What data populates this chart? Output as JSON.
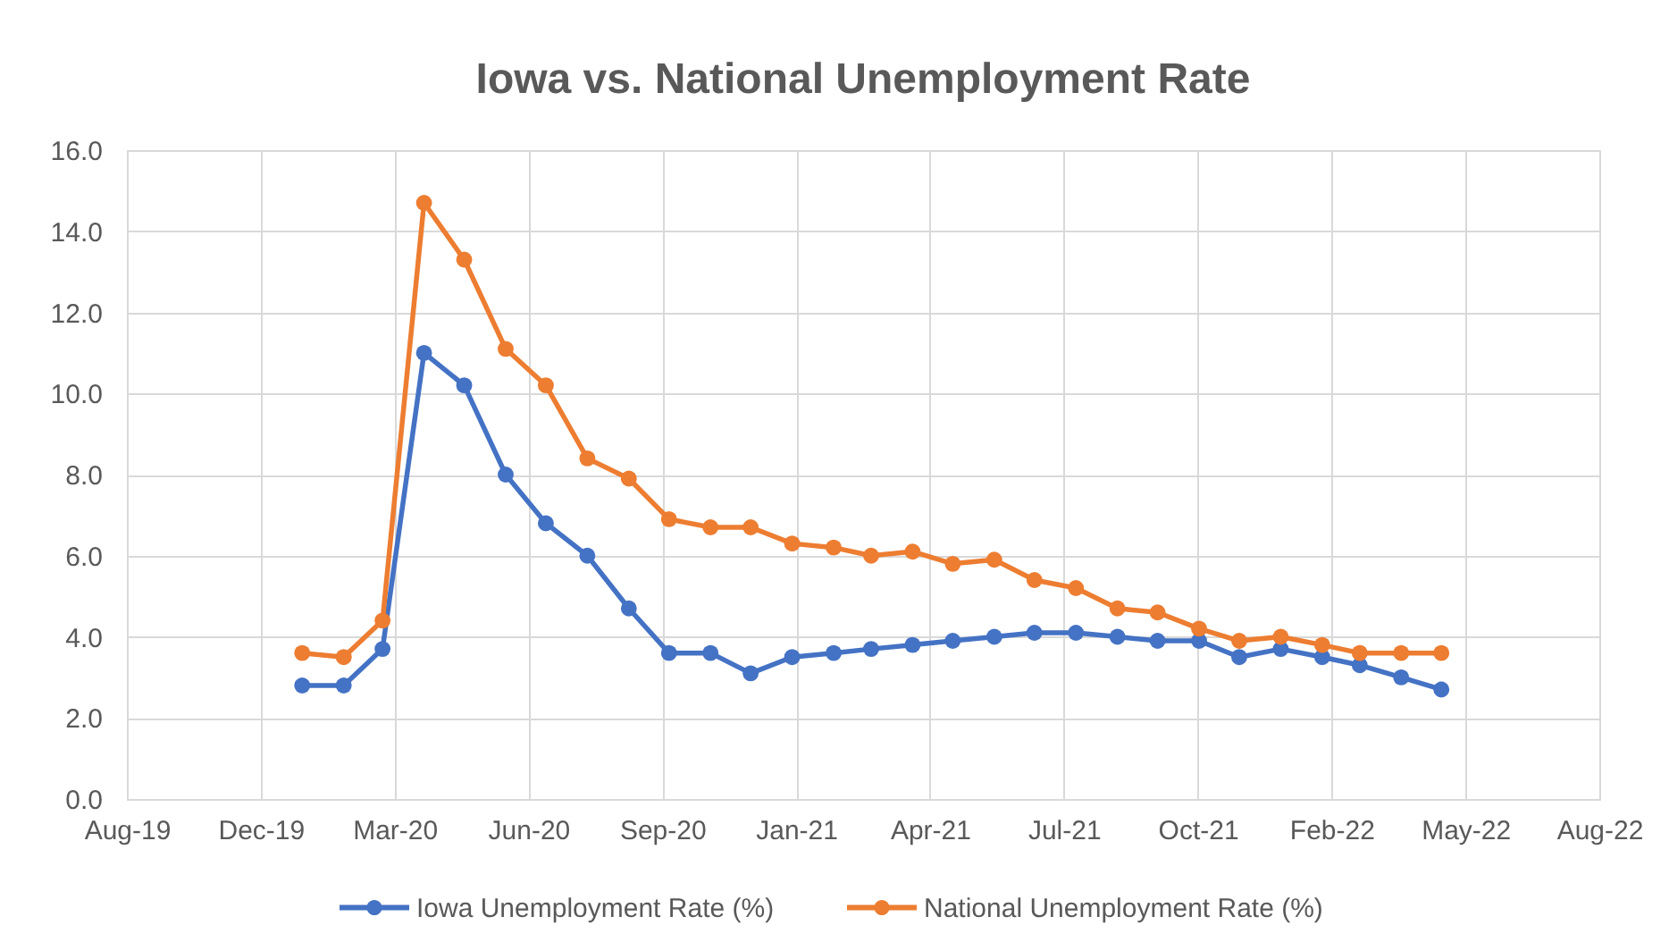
{
  "chart_data": {
    "type": "line",
    "title": "Iowa vs. National Unemployment Rate",
    "x": [
      "2020-01",
      "2020-02",
      "2020-03",
      "2020-04",
      "2020-05",
      "2020-06",
      "2020-07",
      "2020-08",
      "2020-09",
      "2020-10",
      "2020-11",
      "2020-12",
      "2021-01",
      "2021-02",
      "2021-03",
      "2021-04",
      "2021-05",
      "2021-06",
      "2021-07",
      "2021-08",
      "2021-09",
      "2021-10",
      "2021-11",
      "2021-12",
      "2022-01",
      "2022-02",
      "2022-03",
      "2022-04",
      "2022-05"
    ],
    "xlim": [
      "2019-08-23",
      "2022-08-27"
    ],
    "xticks": [
      {
        "value": "2019-08-23",
        "label": "Aug-19"
      },
      {
        "value": "2019-12-01",
        "label": "Dec-19"
      },
      {
        "value": "2020-03-10",
        "label": "Mar-20"
      },
      {
        "value": "2020-06-18",
        "label": "Jun-20"
      },
      {
        "value": "2020-09-26",
        "label": "Sep-20"
      },
      {
        "value": "2021-01-04",
        "label": "Jan-21"
      },
      {
        "value": "2021-04-14",
        "label": "Apr-21"
      },
      {
        "value": "2021-07-23",
        "label": "Jul-21"
      },
      {
        "value": "2021-10-31",
        "label": "Oct-21"
      },
      {
        "value": "2022-02-08",
        "label": "Feb-22"
      },
      {
        "value": "2022-05-19",
        "label": "May-22"
      },
      {
        "value": "2022-08-27",
        "label": "Aug-22"
      }
    ],
    "ylim": [
      0,
      16
    ],
    "yticks": [
      {
        "value": 0,
        "label": "0.0"
      },
      {
        "value": 2,
        "label": "2.0"
      },
      {
        "value": 4,
        "label": "4.0"
      },
      {
        "value": 6,
        "label": "6.0"
      },
      {
        "value": 8,
        "label": "8.0"
      },
      {
        "value": 10,
        "label": "10.0"
      },
      {
        "value": 12,
        "label": "12.0"
      },
      {
        "value": 14,
        "label": "14.0"
      },
      {
        "value": 16,
        "label": "16.0"
      }
    ],
    "series": [
      {
        "name": "Iowa Unemployment Rate (%)",
        "color": "#4472c4",
        "values": [
          2.8,
          2.8,
          3.7,
          11.0,
          10.2,
          8.0,
          6.8,
          6.0,
          4.7,
          3.6,
          3.6,
          3.1,
          3.5,
          3.6,
          3.7,
          3.8,
          3.9,
          4.0,
          4.1,
          4.1,
          4.0,
          3.9,
          3.9,
          3.5,
          3.7,
          3.5,
          3.3,
          3.0,
          2.7
        ]
      },
      {
        "name": "National Unemployment Rate (%)",
        "color": "#ed7d31",
        "values": [
          3.6,
          3.5,
          4.4,
          14.7,
          13.3,
          11.1,
          10.2,
          8.4,
          7.9,
          6.9,
          6.7,
          6.7,
          6.3,
          6.2,
          6.0,
          6.1,
          5.8,
          5.9,
          5.4,
          5.2,
          4.7,
          4.6,
          4.2,
          3.9,
          4.0,
          3.8,
          3.6,
          3.6,
          3.6
        ]
      }
    ],
    "grid": true,
    "legend": "bottom",
    "marker": "circle",
    "line_style": "solid"
  }
}
